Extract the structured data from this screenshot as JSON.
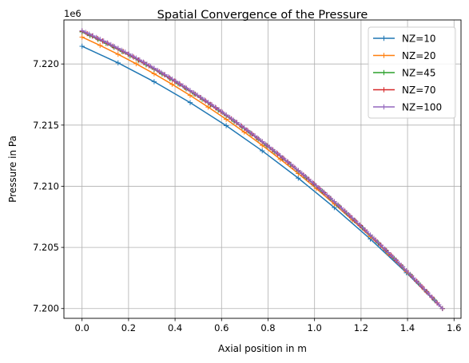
{
  "chart_data": {
    "type": "line",
    "title": "Spatial Convergence of the Pressure",
    "xlabel": "Axial position in m",
    "ylabel": "Pressure in Pa",
    "y_offset_label": "1e6",
    "xlim": [
      -0.078,
      1.63
    ],
    "ylim": [
      7.1992,
      7.2236
    ],
    "x_ticks": [
      0.0,
      0.2,
      0.4,
      0.6,
      0.8,
      1.0,
      1.2,
      1.4,
      1.6
    ],
    "x_tick_labels": [
      "0.0",
      "0.2",
      "0.4",
      "0.6",
      "0.8",
      "1.0",
      "1.2",
      "1.4",
      "1.6"
    ],
    "y_ticks": [
      7.2,
      7.205,
      7.21,
      7.215,
      7.22
    ],
    "y_tick_labels": [
      "7.200",
      "7.205",
      "7.210",
      "7.215",
      "7.220"
    ],
    "grid": true,
    "legend_position": "top-right",
    "x_length": 1.55,
    "series": [
      {
        "name": "NZ=10",
        "color": "#1f77b4",
        "n": 10,
        "start": 7.22145,
        "end": 7.2
      },
      {
        "name": "NZ=20",
        "color": "#ff7f0e",
        "n": 20,
        "start": 7.2222,
        "end": 7.2
      },
      {
        "name": "NZ=45",
        "color": "#2ca02c",
        "n": 45,
        "start": 7.22262,
        "end": 7.2
      },
      {
        "name": "NZ=70",
        "color": "#d62728",
        "n": 70,
        "start": 7.22268,
        "end": 7.2
      },
      {
        "name": "NZ=100",
        "color": "#9467bd",
        "n": 100,
        "start": 7.22272,
        "end": 7.2
      }
    ]
  }
}
